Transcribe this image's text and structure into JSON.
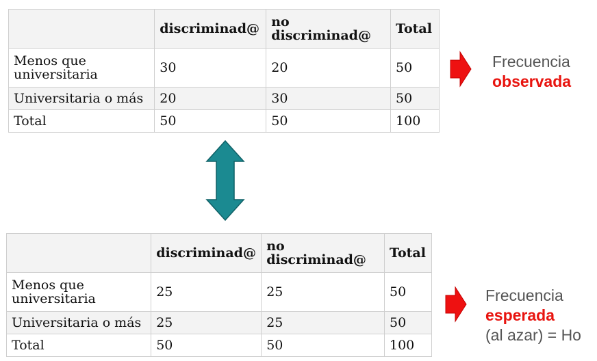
{
  "observed_table": {
    "headers": [
      "",
      "discriminad@",
      "no\ndiscriminad@",
      "Total"
    ],
    "header_no_line1": "no",
    "header_no_line2": "discriminad@",
    "rows": [
      [
        "Menos que universitaria",
        "30",
        "20",
        "50"
      ],
      [
        "Universitaria o más",
        "20",
        "30",
        "50"
      ],
      [
        "Total",
        "50",
        "50",
        "100"
      ]
    ],
    "row1_label_line1": "Menos que",
    "row1_label_line2": "universitaria"
  },
  "expected_table": {
    "headers": [
      "",
      "discriminad@",
      "no\ndiscriminad@",
      "Total"
    ],
    "header_no_line1": "no",
    "header_no_line2": "discriminad@",
    "rows": [
      [
        "Menos que universitaria",
        "25",
        "25",
        "50"
      ],
      [
        "Universitaria o más",
        "25",
        "25",
        "50"
      ],
      [
        "Total",
        "50",
        "50",
        "100"
      ]
    ],
    "row1_label_line1": "Menos que",
    "row1_label_line2": "universitaria"
  },
  "observed_label": {
    "line1": "Frecuencia",
    "emphasis": "observada"
  },
  "expected_label": {
    "line1": "Frecuencia",
    "emphasis": "esperada",
    "line3": "(al azar) = Ho"
  },
  "colors": {
    "arrow_red": "#ee1111",
    "double_arrow_teal": "#1b8a91",
    "emphasis_red": "#e8140f"
  },
  "icons": [
    "red-right-arrow-icon",
    "teal-double-arrow-icon"
  ]
}
